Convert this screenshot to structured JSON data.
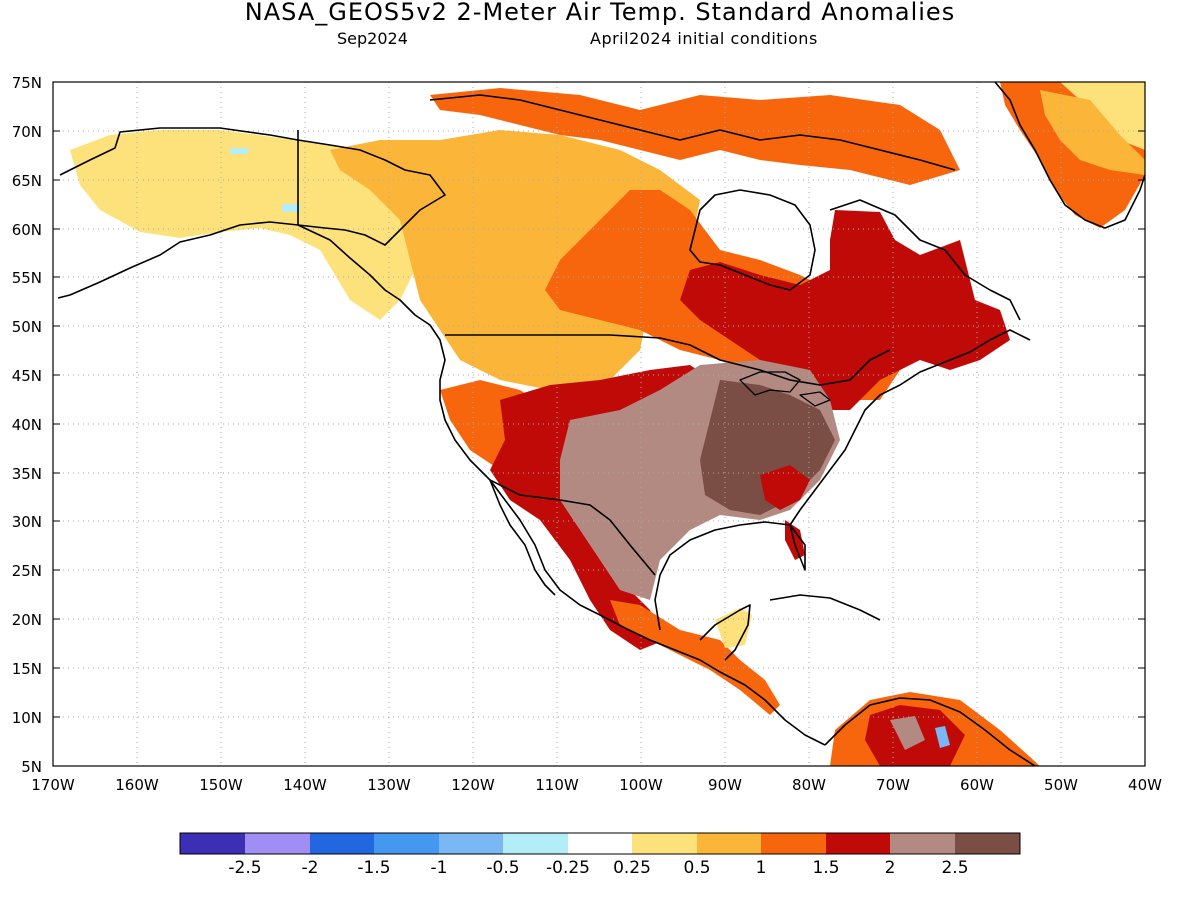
{
  "title": "NASA_GEOS5v2 2-Meter Air Temp. Standard Anomalies",
  "subtitle_left": "Sep2024",
  "subtitle_right": "April2024 initial conditions",
  "lat_labels": [
    "75N",
    "70N",
    "65N",
    "60N",
    "55N",
    "50N",
    "45N",
    "40N",
    "35N",
    "30N",
    "25N",
    "20N",
    "15N",
    "10N",
    "5N"
  ],
  "lon_labels": [
    "170W",
    "160W",
    "150W",
    "140W",
    "130W",
    "120W",
    "110W",
    "100W",
    "90W",
    "80W",
    "70W",
    "60W",
    "50W",
    "40W"
  ],
  "colorbar": {
    "colors": [
      "#3b2fb5",
      "#a08ef5",
      "#2266e0",
      "#4498f0",
      "#7ab8f5",
      "#b3eef8",
      "#ffffff",
      "#fde17a",
      "#fbb63a",
      "#f7660d",
      "#c00a08",
      "#b38a82",
      "#7a4e44"
    ],
    "labels": [
      "-2.5",
      "-2",
      "-1.5",
      "-1",
      "-0.5",
      "-0.25",
      "0.25",
      "0.5",
      "1",
      "1.5",
      "2",
      "2.5"
    ]
  },
  "colors": {
    "coast": "#000000",
    "grid": "#aaaaaa"
  }
}
